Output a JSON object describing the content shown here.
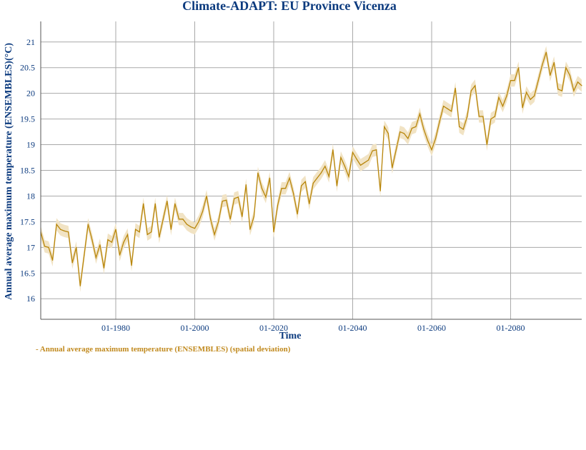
{
  "chart_data": {
    "type": "line",
    "title": "Climate-ADAPT: EU Province Vicenza",
    "xlabel": "Time",
    "ylabel": "Annual average maximum temperature (ENSEMBLES)(°C)",
    "x_tick_labels": [
      "01-1980",
      "01-2000",
      "01-2020",
      "01-2040",
      "01-2060",
      "01-2080"
    ],
    "x_tick_years": [
      1980,
      2000,
      2020,
      2040,
      2060,
      2080
    ],
    "y_ticks": [
      16,
      16.5,
      17,
      17.5,
      18,
      18.5,
      19,
      19.5,
      20,
      20.5,
      21
    ],
    "xlim": [
      1961,
      2098
    ],
    "ylim": [
      15.6,
      21.4
    ],
    "grid": true,
    "legend_position": "bottom-left",
    "series": [
      {
        "name": "- Annual average maximum temperature (ENSEMBLES) (spatial deviation)",
        "color": "#b8860b",
        "band_color": "#f1e3c4",
        "band_halfwidth": 0.12,
        "x": [
          1961,
          1962,
          1963,
          1964,
          1965,
          1966,
          1967,
          1968,
          1969,
          1970,
          1971,
          1972,
          1973,
          1974,
          1975,
          1976,
          1977,
          1978,
          1979,
          1980,
          1981,
          1982,
          1983,
          1984,
          1985,
          1986,
          1987,
          1988,
          1989,
          1990,
          1991,
          1992,
          1993,
          1994,
          1995,
          1996,
          1997,
          1998,
          1999,
          2000,
          2001,
          2002,
          2003,
          2004,
          2005,
          2006,
          2007,
          2008,
          2009,
          2010,
          2011,
          2012,
          2013,
          2014,
          2015,
          2016,
          2017,
          2018,
          2019,
          2020,
          2021,
          2022,
          2023,
          2024,
          2025,
          2026,
          2027,
          2028,
          2029,
          2030,
          2031,
          2032,
          2033,
          2034,
          2035,
          2036,
          2037,
          2038,
          2039,
          2040,
          2041,
          2042,
          2043,
          2044,
          2045,
          2046,
          2047,
          2048,
          2049,
          2050,
          2051,
          2052,
          2053,
          2054,
          2055,
          2056,
          2057,
          2058,
          2059,
          2060,
          2061,
          2062,
          2063,
          2064,
          2065,
          2066,
          2067,
          2068,
          2069,
          2070,
          2071,
          2072,
          2073,
          2074,
          2075,
          2076,
          2077,
          2078,
          2079,
          2080,
          2081,
          2082,
          2083,
          2084,
          2085,
          2086,
          2087,
          2088,
          2089,
          2090,
          2091,
          2092,
          2093,
          2094,
          2095,
          2096,
          2097,
          2098
        ],
        "y": [
          17.3,
          17.02,
          17.0,
          16.75,
          17.45,
          17.35,
          17.32,
          17.3,
          16.7,
          17.0,
          16.25,
          16.85,
          17.45,
          17.15,
          16.8,
          17.05,
          16.6,
          17.15,
          17.1,
          17.35,
          16.85,
          17.1,
          17.25,
          16.65,
          17.35,
          17.3,
          17.85,
          17.25,
          17.3,
          17.85,
          17.2,
          17.55,
          17.9,
          17.35,
          17.85,
          17.55,
          17.55,
          17.45,
          17.4,
          17.37,
          17.5,
          17.7,
          18.0,
          17.55,
          17.25,
          17.5,
          17.9,
          17.92,
          17.55,
          17.95,
          17.98,
          17.6,
          18.22,
          17.35,
          17.6,
          18.45,
          18.15,
          17.98,
          18.35,
          17.3,
          17.82,
          18.15,
          18.15,
          18.35,
          18.05,
          17.65,
          18.2,
          18.28,
          17.85,
          18.25,
          18.35,
          18.45,
          18.58,
          18.38,
          18.9,
          18.2,
          18.75,
          18.58,
          18.38,
          18.85,
          18.72,
          18.6,
          18.65,
          18.7,
          18.88,
          18.9,
          18.1,
          19.35,
          19.22,
          18.55,
          18.9,
          19.25,
          19.22,
          19.12,
          19.32,
          19.35,
          19.6,
          19.3,
          19.08,
          18.9,
          19.12,
          19.45,
          19.75,
          19.7,
          19.65,
          20.1,
          19.35,
          19.3,
          19.55,
          20.05,
          20.15,
          19.55,
          19.55,
          19.0,
          19.5,
          19.55,
          19.92,
          19.75,
          19.95,
          20.25,
          20.25,
          20.5,
          19.72,
          20.02,
          19.88,
          19.95,
          20.25,
          20.55,
          20.8,
          20.35,
          20.6,
          20.08,
          20.05,
          20.5,
          20.35,
          20.05,
          20.22,
          20.15
        ]
      }
    ]
  }
}
